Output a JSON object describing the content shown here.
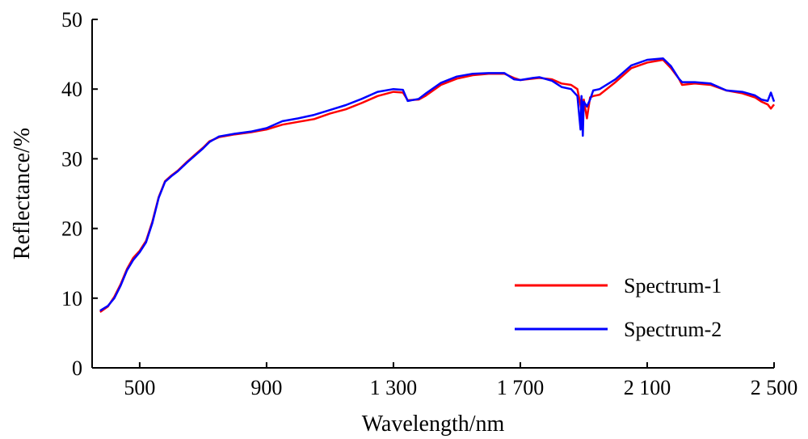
{
  "chart_data": {
    "type": "line",
    "xlabel": "Wavelength/nm",
    "ylabel": "Reflectance/%",
    "xlim": [
      350,
      2500
    ],
    "ylim": [
      0,
      50
    ],
    "x_ticks": [
      {
        "value": 500,
        "label": "500"
      },
      {
        "value": 900,
        "label": "900"
      },
      {
        "value": 1300,
        "label": "1 300"
      },
      {
        "value": 1700,
        "label": "1 700"
      },
      {
        "value": 2100,
        "label": "2 100"
      },
      {
        "value": 2500,
        "label": "2 500"
      }
    ],
    "y_ticks": [
      {
        "value": 0,
        "label": "0"
      },
      {
        "value": 10,
        "label": "10"
      },
      {
        "value": 20,
        "label": "20"
      },
      {
        "value": 30,
        "label": "30"
      },
      {
        "value": 40,
        "label": "40"
      },
      {
        "value": 50,
        "label": "50"
      }
    ],
    "grid": false,
    "legend": "bottom-right",
    "series": [
      {
        "name": "Spectrum-1",
        "color": "#ff0000",
        "points": [
          [
            375,
            8.0
          ],
          [
            400,
            8.8
          ],
          [
            420,
            10.2
          ],
          [
            440,
            12.0
          ],
          [
            460,
            14.2
          ],
          [
            480,
            15.8
          ],
          [
            500,
            16.8
          ],
          [
            520,
            18.2
          ],
          [
            540,
            21.0
          ],
          [
            560,
            24.5
          ],
          [
            580,
            26.8
          ],
          [
            600,
            27.6
          ],
          [
            620,
            28.3
          ],
          [
            650,
            29.6
          ],
          [
            680,
            30.8
          ],
          [
            700,
            31.6
          ],
          [
            720,
            32.5
          ],
          [
            750,
            33.1
          ],
          [
            800,
            33.5
          ],
          [
            850,
            33.8
          ],
          [
            900,
            34.2
          ],
          [
            950,
            34.9
          ],
          [
            1000,
            35.3
          ],
          [
            1050,
            35.7
          ],
          [
            1100,
            36.5
          ],
          [
            1150,
            37.1
          ],
          [
            1200,
            38.0
          ],
          [
            1250,
            39.0
          ],
          [
            1300,
            39.6
          ],
          [
            1330,
            39.5
          ],
          [
            1345,
            38.4
          ],
          [
            1380,
            38.5
          ],
          [
            1400,
            39.0
          ],
          [
            1450,
            40.6
          ],
          [
            1500,
            41.5
          ],
          [
            1550,
            42.0
          ],
          [
            1600,
            42.2
          ],
          [
            1650,
            42.2
          ],
          [
            1680,
            41.6
          ],
          [
            1700,
            41.3
          ],
          [
            1740,
            41.5
          ],
          [
            1760,
            41.6
          ],
          [
            1800,
            41.4
          ],
          [
            1830,
            40.8
          ],
          [
            1860,
            40.6
          ],
          [
            1880,
            40.0
          ],
          [
            1895,
            36.5
          ],
          [
            1900,
            38.5
          ],
          [
            1910,
            35.8
          ],
          [
            1920,
            38.8
          ],
          [
            1930,
            39.0
          ],
          [
            1950,
            39.2
          ],
          [
            2000,
            41.0
          ],
          [
            2050,
            43.0
          ],
          [
            2100,
            43.8
          ],
          [
            2150,
            44.2
          ],
          [
            2175,
            43.0
          ],
          [
            2200,
            41.5
          ],
          [
            2210,
            40.6
          ],
          [
            2250,
            40.8
          ],
          [
            2300,
            40.6
          ],
          [
            2350,
            39.8
          ],
          [
            2400,
            39.4
          ],
          [
            2440,
            38.8
          ],
          [
            2460,
            38.2
          ],
          [
            2480,
            37.8
          ],
          [
            2490,
            37.2
          ],
          [
            2500,
            37.8
          ]
        ]
      },
      {
        "name": "Spectrum-2",
        "color": "#0000ff",
        "points": [
          [
            375,
            8.2
          ],
          [
            400,
            8.9
          ],
          [
            420,
            10.0
          ],
          [
            440,
            11.8
          ],
          [
            460,
            14.0
          ],
          [
            480,
            15.5
          ],
          [
            500,
            16.6
          ],
          [
            520,
            18.0
          ],
          [
            540,
            20.8
          ],
          [
            560,
            24.4
          ],
          [
            580,
            26.7
          ],
          [
            600,
            27.5
          ],
          [
            620,
            28.2
          ],
          [
            650,
            29.5
          ],
          [
            680,
            30.7
          ],
          [
            700,
            31.5
          ],
          [
            720,
            32.4
          ],
          [
            750,
            33.2
          ],
          [
            800,
            33.6
          ],
          [
            850,
            33.9
          ],
          [
            900,
            34.4
          ],
          [
            950,
            35.4
          ],
          [
            1000,
            35.8
          ],
          [
            1050,
            36.3
          ],
          [
            1100,
            37.0
          ],
          [
            1150,
            37.7
          ],
          [
            1200,
            38.6
          ],
          [
            1250,
            39.6
          ],
          [
            1300,
            40.0
          ],
          [
            1330,
            39.9
          ],
          [
            1345,
            38.3
          ],
          [
            1380,
            38.6
          ],
          [
            1400,
            39.3
          ],
          [
            1450,
            40.9
          ],
          [
            1500,
            41.8
          ],
          [
            1550,
            42.2
          ],
          [
            1600,
            42.3
          ],
          [
            1650,
            42.3
          ],
          [
            1680,
            41.4
          ],
          [
            1700,
            41.3
          ],
          [
            1740,
            41.6
          ],
          [
            1760,
            41.7
          ],
          [
            1800,
            41.2
          ],
          [
            1830,
            40.3
          ],
          [
            1860,
            40.0
          ],
          [
            1880,
            39.0
          ],
          [
            1890,
            34.2
          ],
          [
            1893,
            39.0
          ],
          [
            1897,
            33.3
          ],
          [
            1900,
            38.2
          ],
          [
            1910,
            37.5
          ],
          [
            1920,
            38.5
          ],
          [
            1930,
            39.8
          ],
          [
            1950,
            40.0
          ],
          [
            2000,
            41.4
          ],
          [
            2050,
            43.4
          ],
          [
            2100,
            44.2
          ],
          [
            2150,
            44.4
          ],
          [
            2175,
            43.3
          ],
          [
            2200,
            41.5
          ],
          [
            2210,
            41.0
          ],
          [
            2250,
            41.0
          ],
          [
            2300,
            40.8
          ],
          [
            2350,
            39.8
          ],
          [
            2400,
            39.6
          ],
          [
            2440,
            39.1
          ],
          [
            2460,
            38.5
          ],
          [
            2480,
            38.3
          ],
          [
            2490,
            39.5
          ],
          [
            2500,
            38.2
          ]
        ]
      }
    ]
  }
}
